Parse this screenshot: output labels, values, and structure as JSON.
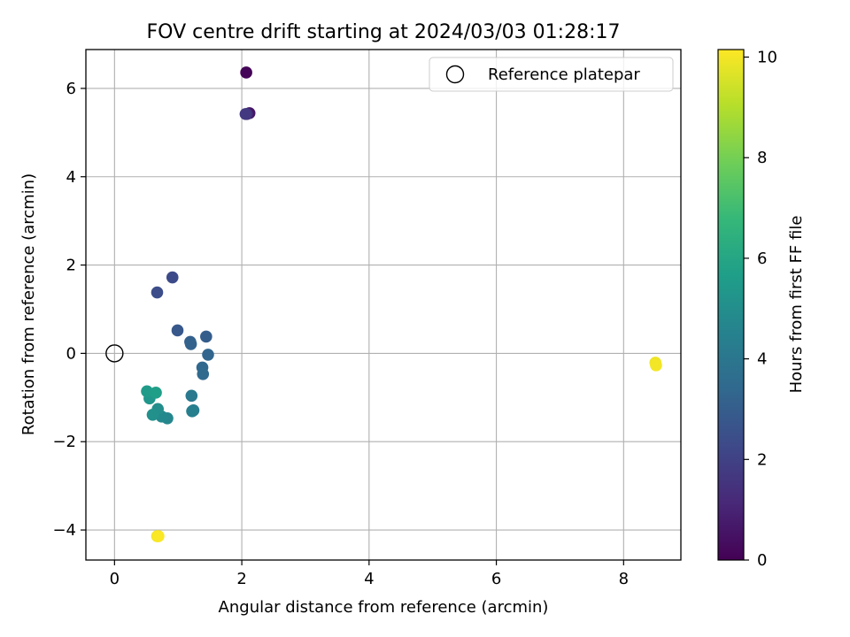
{
  "chart_data": {
    "type": "scatter",
    "title": "FOV centre drift starting at 2024/03/03 01:28:17",
    "xlabel": "Angular distance from reference (arcmin)",
    "ylabel": "Rotation from reference (arcmin)",
    "xlim": [
      -0.45,
      8.9
    ],
    "ylim": [
      -4.68,
      6.88
    ],
    "xticks": [
      0,
      2,
      4,
      6,
      8
    ],
    "yticks": [
      -4,
      -2,
      0,
      2,
      4,
      6
    ],
    "grid": true,
    "legend": {
      "placement": "top-right",
      "entries": [
        "Reference platepar"
      ]
    },
    "reference_point": {
      "x": 0,
      "y": 0
    },
    "colorbar": {
      "label": "Hours from first FF file",
      "colormap": "viridis",
      "range": [
        0,
        10.15
      ],
      "ticks": [
        0,
        2,
        4,
        6,
        8,
        10
      ]
    },
    "colormap_stops": [
      "#440154",
      "#482878",
      "#3e4989",
      "#31688e",
      "#26828e",
      "#1f9e89",
      "#35b779",
      "#6ece58",
      "#b5de2b",
      "#fde725"
    ],
    "points": [
      {
        "x": 2.07,
        "y": 6.36,
        "hours": 0.1
      },
      {
        "x": 2.12,
        "y": 5.44,
        "hours": 0.6
      },
      {
        "x": 2.08,
        "y": 5.42,
        "hours": 1.3
      },
      {
        "x": 2.06,
        "y": 5.42,
        "hours": 1.7
      },
      {
        "x": 0.91,
        "y": 1.72,
        "hours": 2.3
      },
      {
        "x": 0.67,
        "y": 1.38,
        "hours": 2.4
      },
      {
        "x": 0.99,
        "y": 0.52,
        "hours": 2.8
      },
      {
        "x": 1.44,
        "y": 0.38,
        "hours": 3.0
      },
      {
        "x": 1.19,
        "y": 0.26,
        "hours": 3.1
      },
      {
        "x": 1.2,
        "y": 0.21,
        "hours": 3.2
      },
      {
        "x": 1.47,
        "y": -0.03,
        "hours": 3.3
      },
      {
        "x": 1.38,
        "y": -0.32,
        "hours": 3.4
      },
      {
        "x": 1.39,
        "y": -0.47,
        "hours": 3.5
      },
      {
        "x": 1.21,
        "y": -0.96,
        "hours": 4.1
      },
      {
        "x": 1.24,
        "y": -1.29,
        "hours": 4.3
      },
      {
        "x": 1.22,
        "y": -1.31,
        "hours": 4.4
      },
      {
        "x": 0.83,
        "y": -1.47,
        "hours": 4.7
      },
      {
        "x": 0.74,
        "y": -1.43,
        "hours": 4.8
      },
      {
        "x": 0.68,
        "y": -1.26,
        "hours": 5.0
      },
      {
        "x": 0.6,
        "y": -1.39,
        "hours": 5.1
      },
      {
        "x": 0.55,
        "y": -1.02,
        "hours": 5.3
      },
      {
        "x": 0.51,
        "y": -0.86,
        "hours": 5.5
      },
      {
        "x": 0.65,
        "y": -0.89,
        "hours": 5.7
      },
      {
        "x": 8.5,
        "y": -0.21,
        "hours": 9.9
      },
      {
        "x": 8.51,
        "y": -0.27,
        "hours": 10.0
      },
      {
        "x": 0.67,
        "y": -4.14,
        "hours": 10.0
      },
      {
        "x": 0.69,
        "y": -4.14,
        "hours": 10.1
      }
    ]
  }
}
